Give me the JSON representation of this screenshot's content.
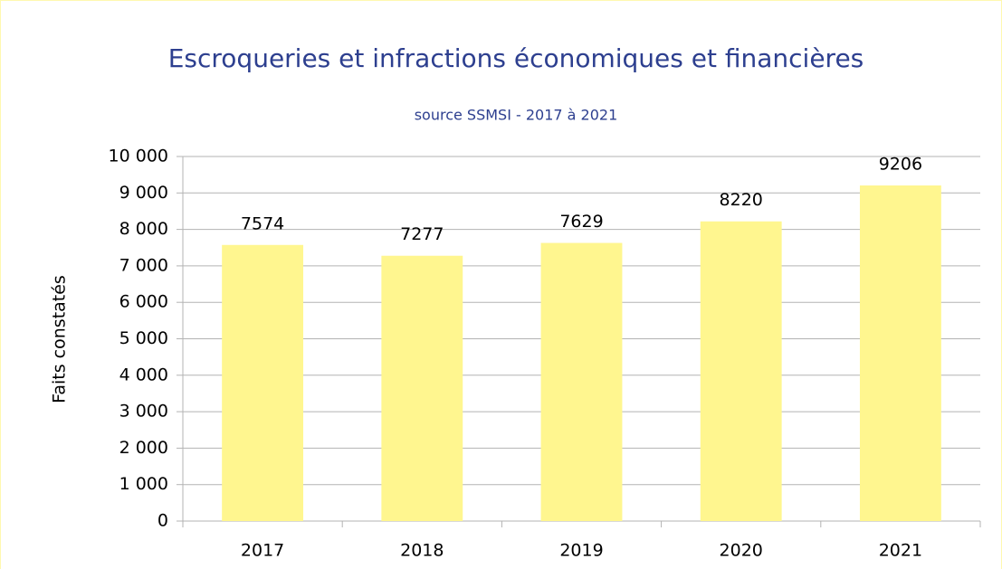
{
  "chart_data": {
    "type": "bar",
    "title": "Escroqueries et infractions économiques et financières",
    "subtitle": "source SSMSI - 2017 à 2021",
    "y_label": "Faits constatés",
    "categories": [
      "2017",
      "2018",
      "2019",
      "2020",
      "2021"
    ],
    "values": [
      7574,
      7277,
      7629,
      8220,
      9206
    ],
    "color": "#fff68f",
    "ylim": [
      0,
      10000
    ],
    "yticks": [
      0,
      {
        "value": 1000,
        "label": "1 000"
      },
      {
        "value": 2000,
        "label": "2 000"
      },
      {
        "value": 3000,
        "label": "3 000"
      },
      {
        "value": 4000,
        "label": "4 000"
      },
      {
        "value": 5000,
        "label": "5 000"
      },
      {
        "value": 6000,
        "label": "6 000"
      },
      {
        "value": 7000,
        "label": "7 000"
      },
      {
        "value": 8000,
        "label": "8 000"
      },
      {
        "value": 9000,
        "label": "9 000"
      },
      {
        "value": 10000,
        "label": "10 000"
      }
    ],
    "grid": true
  }
}
